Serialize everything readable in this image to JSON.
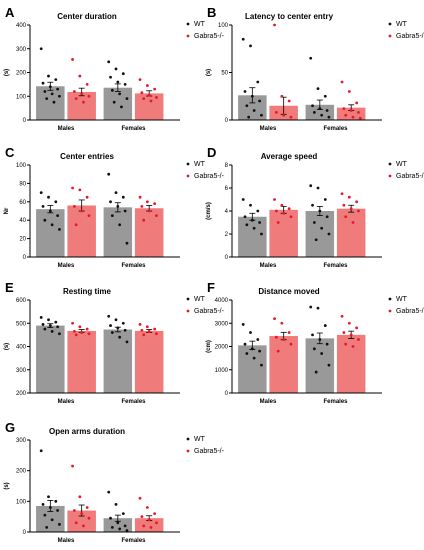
{
  "colors": {
    "wt_bar": "#999999",
    "wt_dot": "#111111",
    "ko_bar": "#f07b7b",
    "ko_dot": "#e8172b",
    "err": "#000000"
  },
  "chart_data": [
    {
      "panel": "A",
      "type": "bar",
      "title": "Center duration",
      "ylabel": "(s)",
      "categories": [
        "Males",
        "Females"
      ],
      "ylim": [
        0,
        400
      ],
      "yticks": [
        0,
        100,
        200,
        300,
        400
      ],
      "series": [
        {
          "name": "WT",
          "values": [
            142,
            136
          ],
          "errors": [
            17,
            16
          ],
          "points": [
            [
              300,
              185,
              170,
              155,
              140,
              130,
              120,
              110,
              100,
              90,
              75
            ],
            [
              245,
              215,
              195,
              180,
              160,
              150,
              125,
              110,
              90,
              75,
              55
            ]
          ]
        },
        {
          "name": "Gabra5-/-",
          "values": [
            118,
            112
          ],
          "errors": [
            16,
            11
          ],
          "points": [
            [
              255,
              185,
              150,
              120,
              110,
              100,
              90,
              75
            ],
            [
              170,
              145,
              130,
              115,
              105,
              95,
              90,
              80
            ]
          ]
        }
      ]
    },
    {
      "panel": "B",
      "type": "bar",
      "title": "Latency to center entry",
      "ylabel": "(s)",
      "categories": [
        "Males",
        "Females"
      ],
      "ylim": [
        0,
        100
      ],
      "yticks": [
        0,
        50,
        100
      ],
      "series": [
        {
          "name": "WT",
          "values": [
            26,
            16
          ],
          "errors": [
            8,
            5
          ],
          "points": [
            [
              85,
              78,
              40,
              30,
              25,
              20,
              15,
              10,
              5,
              3
            ],
            [
              65,
              33,
              25,
              15,
              12,
              10,
              8,
              5,
              3
            ]
          ]
        },
        {
          "name": "Gabra5-/-",
          "values": [
            15,
            13
          ],
          "errors": [
            9,
            3
          ],
          "points": [
            [
              100,
              25,
              20,
              8,
              5,
              3
            ],
            [
              40,
              30,
              18,
              12,
              10,
              8,
              5,
              3,
              2
            ]
          ]
        }
      ]
    },
    {
      "panel": "C",
      "type": "bar",
      "title": "Center entries",
      "ylabel": "Nr",
      "categories": [
        "Males",
        "Females"
      ],
      "ylim": [
        0,
        100
      ],
      "yticks": [
        0,
        20,
        40,
        60,
        80,
        100
      ],
      "series": [
        {
          "name": "WT",
          "values": [
            52,
            54
          ],
          "errors": [
            4,
            5
          ],
          "points": [
            [
              70,
              65,
              60,
              55,
              50,
              45,
              40,
              35,
              30
            ],
            [
              90,
              70,
              65,
              60,
              55,
              50,
              45,
              35,
              15
            ]
          ]
        },
        {
          "name": "Gabra5-/-",
          "values": [
            56,
            53
          ],
          "errors": [
            6,
            3
          ],
          "points": [
            [
              75,
              73,
              65,
              55,
              50,
              45,
              35
            ],
            [
              65,
              60,
              58,
              55,
              50,
              45,
              40
            ]
          ]
        }
      ]
    },
    {
      "panel": "D",
      "type": "bar",
      "title": "Average speed",
      "ylabel": "(cm/s)",
      "categories": [
        "Males",
        "Females"
      ],
      "ylim": [
        0,
        8
      ],
      "yticks": [
        0,
        2,
        4,
        6,
        8
      ],
      "series": [
        {
          "name": "WT",
          "values": [
            3.5,
            4.0
          ],
          "errors": [
            0.3,
            0.4
          ],
          "points": [
            [
              5.0,
              4.5,
              4.0,
              3.5,
              3.2,
              3.0,
              2.8,
              2.5,
              2.0
            ],
            [
              6.2,
              6.0,
              5.0,
              4.5,
              4.0,
              3.5,
              3.0,
              2.5,
              2.0,
              1.5
            ]
          ]
        },
        {
          "name": "Gabra5-/-",
          "values": [
            4.1,
            4.2
          ],
          "errors": [
            0.3,
            0.3
          ],
          "points": [
            [
              5.0,
              4.5,
              4.2,
              4.0,
              3.8,
              3.5,
              3.0
            ],
            [
              5.5,
              5.2,
              4.8,
              4.5,
              4.2,
              4.0,
              3.5,
              3.0
            ]
          ]
        }
      ]
    },
    {
      "panel": "E",
      "type": "bar",
      "title": "Resting time",
      "ylabel": "(s)",
      "categories": [
        "Males",
        "Females"
      ],
      "ylim": [
        200,
        600
      ],
      "yticks": [
        200,
        300,
        400,
        500,
        600
      ],
      "series": [
        {
          "name": "WT",
          "values": [
            490,
            473
          ],
          "errors": [
            8,
            10
          ],
          "points": [
            [
              525,
              515,
              505,
              495,
              490,
              485,
              475,
              465,
              455
            ],
            [
              530,
              515,
              500,
              490,
              480,
              470,
              460,
              440,
              420
            ]
          ]
        },
        {
          "name": "Gabra5-/-",
          "values": [
            467,
            467
          ],
          "errors": [
            6,
            6
          ],
          "points": [
            [
              500,
              485,
              475,
              465,
              460,
              455,
              450
            ],
            [
              495,
              485,
              475,
              470,
              465,
              455,
              450
            ]
          ]
        }
      ]
    },
    {
      "panel": "F",
      "type": "bar",
      "title": "Distance moved",
      "ylabel": "(cm)",
      "categories": [
        "Males",
        "Females"
      ],
      "ylim": [
        0,
        4000
      ],
      "yticks": [
        0,
        1000,
        2000,
        3000,
        4000
      ],
      "series": [
        {
          "name": "WT",
          "values": [
            2050,
            2350
          ],
          "errors": [
            180,
            230
          ],
          "points": [
            [
              2950,
              2600,
              2300,
              2100,
              1900,
              1800,
              1700,
              1500,
              1200
            ],
            [
              3700,
              3650,
              2900,
              2500,
              2300,
              2100,
              1900,
              1700,
              1200,
              900
            ]
          ]
        },
        {
          "name": "Gabra5-/-",
          "values": [
            2450,
            2500
          ],
          "errors": [
            160,
            160
          ],
          "points": [
            [
              3200,
              3000,
              2600,
              2400,
              2300,
              2100,
              1800
            ],
            [
              3300,
              3000,
              2800,
              2600,
              2500,
              2300,
              2100,
              2000
            ]
          ]
        }
      ]
    },
    {
      "panel": "G",
      "type": "bar",
      "title": "Open arms duration",
      "ylabel": "(s)",
      "categories": [
        "Males",
        "Females"
      ],
      "ylim": [
        0,
        300
      ],
      "yticks": [
        0,
        100,
        200,
        300
      ],
      "series": [
        {
          "name": "WT",
          "values": [
            85,
            45
          ],
          "errors": [
            18,
            10
          ],
          "points": [
            [
              265,
              115,
              100,
              90,
              80,
              70,
              55,
              40,
              25,
              15
            ],
            [
              130,
              90,
              60,
              45,
              30,
              20,
              15,
              10,
              5
            ]
          ]
        },
        {
          "name": "Gabra5-/-",
          "values": [
            70,
            45
          ],
          "errors": [
            18,
            8
          ],
          "points": [
            [
              215,
              115,
              80,
              70,
              60,
              45,
              30,
              20
            ],
            [
              110,
              80,
              60,
              50,
              40,
              30,
              20,
              15
            ]
          ]
        }
      ]
    }
  ]
}
